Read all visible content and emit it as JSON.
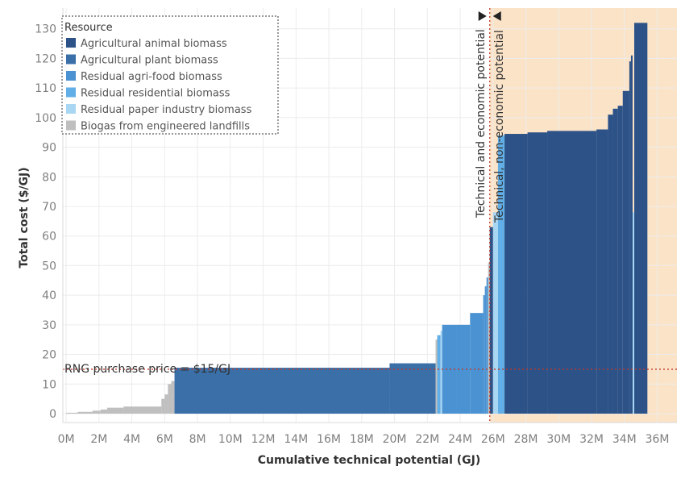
{
  "chart_data": {
    "type": "bar",
    "subtype": "supply-cost-curve",
    "xlabel": "Cumulative technical potential (GJ)",
    "ylabel": "Total cost ($/GJ)",
    "xlim": [
      -0.2,
      37.2
    ],
    "ylim": [
      -3,
      137
    ],
    "x_ticks": [
      0,
      2,
      4,
      6,
      8,
      10,
      12,
      14,
      16,
      18,
      20,
      22,
      24,
      26,
      28,
      30,
      32,
      34,
      36
    ],
    "x_tick_labels": [
      "0M",
      "2M",
      "4M",
      "6M",
      "8M",
      "10M",
      "12M",
      "14M",
      "16M",
      "18M",
      "20M",
      "22M",
      "24M",
      "26M",
      "28M",
      "30M",
      "32M",
      "34M",
      "36M"
    ],
    "y_ticks": [
      0,
      10,
      20,
      30,
      40,
      50,
      60,
      70,
      80,
      90,
      100,
      110,
      120,
      130
    ],
    "y_tick_labels": [
      "0",
      "10",
      "20",
      "30",
      "40",
      "50",
      "60",
      "70",
      "80",
      "90",
      "100",
      "110",
      "120",
      "130"
    ],
    "grid": true,
    "legend": {
      "title": "Resource",
      "placement": "top-left",
      "entries": [
        {
          "label": "Agricultural animal biomass",
          "color": "#2c5288"
        },
        {
          "label": "Agricultural plant biomass",
          "color": "#3a6fa8"
        },
        {
          "label": "Residual agri-food biomass",
          "color": "#4a92d2"
        },
        {
          "label": "Residual residential biomass",
          "color": "#62aee6"
        },
        {
          "label": "Residual paper industry biomass",
          "color": "#a9d6f2"
        },
        {
          "label": "Biogas from engineered landfills",
          "color": "#bfbfbf"
        }
      ]
    },
    "reference_line": {
      "y": 15,
      "label": "RNG purchase price = $15/GJ",
      "color": "#c0392b"
    },
    "economic_threshold": {
      "x": 25.8,
      "label_left": "Technical and economic potential",
      "label_right": "Technical, non-economic potential",
      "shade_color": "#fbe3c7"
    },
    "segments": [
      {
        "x0": 0.0,
        "x1": 0.7,
        "cost": 0.3,
        "resource": "Biogas from engineered landfills"
      },
      {
        "x0": 0.7,
        "x1": 1.6,
        "cost": 0.6,
        "resource": "Biogas from engineered landfills"
      },
      {
        "x0": 1.6,
        "x1": 2.1,
        "cost": 1.0,
        "resource": "Biogas from engineered landfills"
      },
      {
        "x0": 2.1,
        "x1": 2.5,
        "cost": 1.4,
        "resource": "Biogas from engineered landfills"
      },
      {
        "x0": 2.5,
        "x1": 3.5,
        "cost": 2.0,
        "resource": "Biogas from engineered landfills"
      },
      {
        "x0": 3.5,
        "x1": 5.8,
        "cost": 2.4,
        "resource": "Biogas from engineered landfills"
      },
      {
        "x0": 5.8,
        "x1": 6.0,
        "cost": 5.0,
        "resource": "Biogas from engineered landfills"
      },
      {
        "x0": 6.0,
        "x1": 6.2,
        "cost": 6.5,
        "resource": "Biogas from engineered landfills"
      },
      {
        "x0": 6.2,
        "x1": 6.4,
        "cost": 10.0,
        "resource": "Biogas from engineered landfills"
      },
      {
        "x0": 6.4,
        "x1": 6.6,
        "cost": 11.0,
        "resource": "Biogas from engineered landfills"
      },
      {
        "x0": 6.6,
        "x1": 19.7,
        "cost": 15.5,
        "resource": "Agricultural plant biomass"
      },
      {
        "x0": 19.7,
        "x1": 22.5,
        "cost": 17.0,
        "resource": "Agricultural plant biomass"
      },
      {
        "x0": 22.5,
        "x1": 22.6,
        "cost": 25.0,
        "resource": "Biogas from engineered landfills"
      },
      {
        "x0": 22.6,
        "x1": 22.8,
        "cost": 26.5,
        "resource": "Residual residential biomass"
      },
      {
        "x0": 22.8,
        "x1": 22.9,
        "cost": 28.0,
        "resource": "Residual paper industry biomass"
      },
      {
        "x0": 22.9,
        "x1": 23.8,
        "cost": 30.0,
        "resource": "Residual agri-food biomass"
      },
      {
        "x0": 23.8,
        "x1": 24.6,
        "cost": 30.0,
        "resource": "Residual agri-food biomass"
      },
      {
        "x0": 24.6,
        "x1": 25.4,
        "cost": 34.0,
        "resource": "Residual agri-food biomass"
      },
      {
        "x0": 25.4,
        "x1": 25.5,
        "cost": 40.0,
        "resource": "Residual agri-food biomass"
      },
      {
        "x0": 25.5,
        "x1": 25.6,
        "cost": 43.0,
        "resource": "Residual agri-food biomass"
      },
      {
        "x0": 25.6,
        "x1": 25.7,
        "cost": 46.0,
        "resource": "Residual agri-food biomass"
      },
      {
        "x0": 25.7,
        "x1": 25.8,
        "cost": 51.0,
        "resource": "Biogas from engineered landfills"
      },
      {
        "x0": 25.8,
        "x1": 26.0,
        "cost": 63.0,
        "resource": "Agricultural animal biomass"
      },
      {
        "x0": 26.0,
        "x1": 26.3,
        "cost": 68.0,
        "resource": "Residual paper industry biomass"
      },
      {
        "x0": 26.3,
        "x1": 26.7,
        "cost": 94.0,
        "resource": "Residual residential biomass"
      },
      {
        "x0": 26.7,
        "x1": 28.1,
        "cost": 94.5,
        "resource": "Agricultural animal biomass"
      },
      {
        "x0": 28.1,
        "x1": 29.3,
        "cost": 95.0,
        "resource": "Agricultural animal biomass"
      },
      {
        "x0": 29.3,
        "x1": 32.3,
        "cost": 95.5,
        "resource": "Agricultural animal biomass"
      },
      {
        "x0": 32.3,
        "x1": 33.0,
        "cost": 96.0,
        "resource": "Agricultural animal biomass"
      },
      {
        "x0": 33.0,
        "x1": 33.3,
        "cost": 101.0,
        "resource": "Agricultural animal biomass"
      },
      {
        "x0": 33.3,
        "x1": 33.6,
        "cost": 103.0,
        "resource": "Agricultural animal biomass"
      },
      {
        "x0": 33.6,
        "x1": 33.9,
        "cost": 104.0,
        "resource": "Agricultural animal biomass"
      },
      {
        "x0": 33.9,
        "x1": 34.3,
        "cost": 109.0,
        "resource": "Agricultural animal biomass"
      },
      {
        "x0": 34.3,
        "x1": 34.4,
        "cost": 119.0,
        "resource": "Agricultural animal biomass"
      },
      {
        "x0": 34.4,
        "x1": 34.5,
        "cost": 121.0,
        "resource": "Agricultural animal biomass"
      },
      {
        "x0": 34.5,
        "x1": 34.6,
        "cost": 68.0,
        "resource": "Residual paper industry biomass"
      },
      {
        "x0": 34.6,
        "x1": 35.4,
        "cost": 132.0,
        "resource": "Agricultural animal biomass"
      }
    ]
  }
}
